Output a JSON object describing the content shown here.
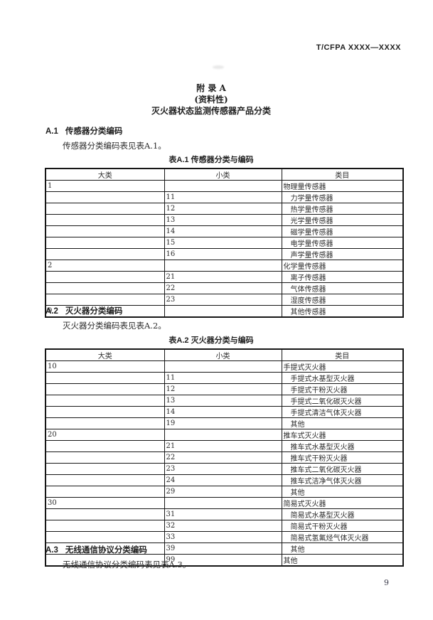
{
  "page": {
    "header_right": "T/CFPA XXXX—XXXX",
    "page_number": "9"
  },
  "colors": {
    "paper": "#ffffff",
    "ink": "#2b2b2b",
    "table_border": "#161616"
  },
  "title_block": {
    "line1": "附  录  A",
    "line2": "(资料性)",
    "line3": "灭火器状态监测传感器产品分类"
  },
  "sections": {
    "a1": {
      "number": "A.1",
      "title": "传感器分类编码",
      "paragraph": "传感器分类编码表见表A.1。",
      "caption": "表A.1 传感器分类与编码"
    },
    "a2": {
      "number": "A.2",
      "title": "灭火器分类编码",
      "paragraph": "灭火器分类编码表见表A.2。",
      "caption": "表A.2 灭火器分类与编码"
    },
    "a3": {
      "number": "A.3",
      "title": "无线通信协议分类编码",
      "paragraph": "无线通信协议分类编码表见表A.3。"
    }
  },
  "tables": [
    {
      "caption": "表A.1 传感器分类与编码",
      "columns": [
        "大类",
        "小类",
        "类目"
      ],
      "rows": [
        {
          "major": "1",
          "minor": "",
          "category": "物理量传感器",
          "indent": false
        },
        {
          "major": "",
          "minor": "11",
          "category": "力学量传感器",
          "indent": true
        },
        {
          "major": "",
          "minor": "12",
          "category": "热学量传感器",
          "indent": true
        },
        {
          "major": "",
          "minor": "13",
          "category": "光学量传感器",
          "indent": true
        },
        {
          "major": "",
          "minor": "14",
          "category": "磁学量传感器",
          "indent": true
        },
        {
          "major": "",
          "minor": "15",
          "category": "电学量传感器",
          "indent": true
        },
        {
          "major": "",
          "minor": "16",
          "category": "声学量传感器",
          "indent": true
        },
        {
          "major": "2",
          "minor": "",
          "category": "化学量传感器",
          "indent": false
        },
        {
          "major": "",
          "minor": "21",
          "category": "离子传感器",
          "indent": true
        },
        {
          "major": "",
          "minor": "22",
          "category": "气体传感器",
          "indent": true
        },
        {
          "major": "",
          "minor": "23",
          "category": "湿度传感器",
          "indent": true
        },
        {
          "major": "9",
          "minor": "",
          "category": "其他传感器",
          "indent": true
        }
      ]
    },
    {
      "caption": "表A.2 灭火器分类与编码",
      "columns": [
        "大类",
        "小类",
        "类目"
      ],
      "rows": [
        {
          "major": "10",
          "minor": "",
          "category": "手提式灭火器",
          "indent": false
        },
        {
          "major": "",
          "minor": "11",
          "category": "手提式水基型灭火器",
          "indent": true
        },
        {
          "major": "",
          "minor": "12",
          "category": "手提式干粉灭火器",
          "indent": true
        },
        {
          "major": "",
          "minor": "13",
          "category": "手提式二氧化碳灭火器",
          "indent": true
        },
        {
          "major": "",
          "minor": "14",
          "category": "手提式清洁气体灭火器",
          "indent": true
        },
        {
          "major": "",
          "minor": "19",
          "category": "其他",
          "indent": true
        },
        {
          "major": "20",
          "minor": "",
          "category": "推车式灭火器",
          "indent": false
        },
        {
          "major": "",
          "minor": "21",
          "category": "推车式水基型灭火器",
          "indent": true
        },
        {
          "major": "",
          "minor": "22",
          "category": "推车式干粉灭火器",
          "indent": true
        },
        {
          "major": "",
          "minor": "23",
          "category": "推车式二氧化碳灭火器",
          "indent": true
        },
        {
          "major": "",
          "minor": "24",
          "category": "推车式洁净气体灭火器",
          "indent": true
        },
        {
          "major": "",
          "minor": "29",
          "category": "其他",
          "indent": true
        },
        {
          "major": "30",
          "minor": "",
          "category": "简易式灭火器",
          "indent": false
        },
        {
          "major": "",
          "minor": "31",
          "category": "简易式水基型灭火器",
          "indent": true
        },
        {
          "major": "",
          "minor": "32",
          "category": "简易式干粉灭火器",
          "indent": true
        },
        {
          "major": "",
          "minor": "33",
          "category": "简易式氢氟烃气体灭火器",
          "indent": true
        },
        {
          "major": "",
          "minor": "39",
          "category": "其他",
          "indent": true
        },
        {
          "major": "",
          "minor": "99",
          "category": "其他",
          "indent": false
        }
      ]
    }
  ]
}
